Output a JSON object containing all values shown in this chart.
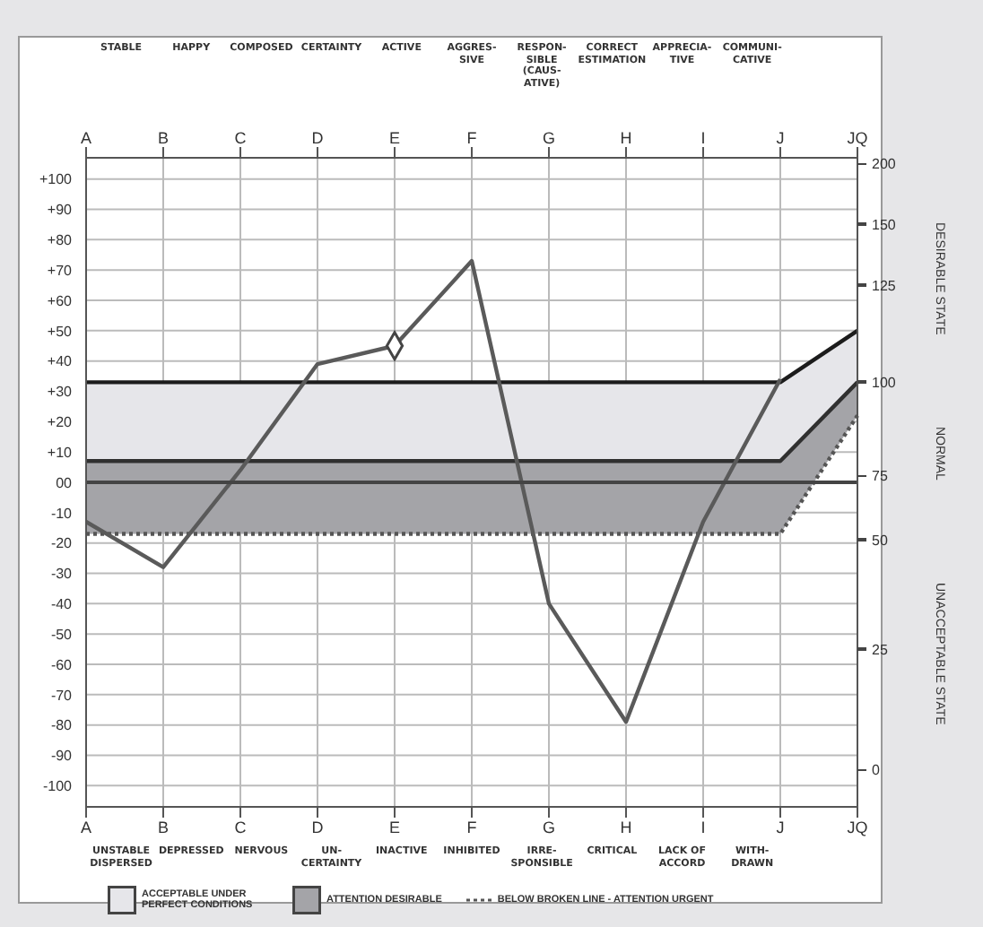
{
  "chart_data": {
    "type": "line",
    "categories": [
      "A",
      "B",
      "C",
      "D",
      "E",
      "F",
      "G",
      "H",
      "I",
      "J",
      "JQ"
    ],
    "ylim": [
      -107,
      107
    ],
    "yticks": [
      {
        "value": 100,
        "label": "+100"
      },
      {
        "value": 90,
        "label": "+90"
      },
      {
        "value": 80,
        "label": "+80"
      },
      {
        "value": 70,
        "label": "+70"
      },
      {
        "value": 60,
        "label": "+60"
      },
      {
        "value": 50,
        "label": "+50"
      },
      {
        "value": 40,
        "label": "+40"
      },
      {
        "value": 30,
        "label": "+30"
      },
      {
        "value": 20,
        "label": "+20"
      },
      {
        "value": 10,
        "label": "+10"
      },
      {
        "value": 0,
        "label": "00"
      },
      -10,
      -20,
      -30,
      -40,
      -50,
      -60,
      -70,
      -80,
      -90,
      -100
    ],
    "grid": true,
    "legend": "bottom",
    "series": [
      {
        "color": "#1c1c1c",
        "values": [
          33,
          33,
          33,
          33,
          33,
          33,
          33,
          33,
          33,
          33,
          50
        ]
      },
      {
        "color": "#303030",
        "values": [
          7,
          7,
          7,
          7,
          7,
          7,
          7,
          7,
          7,
          7,
          33
        ]
      },
      {
        "name": "ACCEPTABLE UNDER PERFECT CONDITIONS",
        "color": "#e6e6ea",
        "values": [
          null,
          null,
          null,
          null,
          null,
          null,
          null,
          null,
          null,
          null,
          null
        ],
        "lower": [
          7,
          7,
          7,
          7,
          7,
          7,
          7,
          7,
          7,
          7,
          33
        ],
        "upper": [
          33,
          33,
          33,
          33,
          33,
          33,
          33,
          33,
          33,
          33,
          50
        ]
      },
      {
        "name": "ATTENTION DESIRABLE",
        "color": "#a4a4a8",
        "values": [
          null,
          null,
          null,
          null,
          null,
          null,
          null,
          null,
          null,
          null,
          null
        ],
        "lower": [
          -17,
          -17,
          -17,
          -17,
          -17,
          -17,
          -17,
          -17,
          -17,
          -17,
          22
        ],
        "upper": [
          7,
          7,
          7,
          7,
          7,
          7,
          7,
          7,
          7,
          7,
          33
        ]
      },
      {
        "name": "BELOW BROKEN LINE - ATTENTION URGENT",
        "color": "#555555",
        "line_style": "dotted",
        "values": [
          -17,
          -17,
          -17,
          -17,
          -17,
          -17,
          -17,
          -17,
          -17,
          -17,
          22
        ]
      },
      {
        "color": "#5a5a5a",
        "values": [
          -13,
          -28,
          4,
          39,
          45,
          73,
          -40,
          -79,
          -13,
          34,
          null
        ]
      },
      {
        "type": "scatter",
        "color": "#444444",
        "marker": "diamond",
        "x": [
          "E"
        ],
        "values": [
          45
        ]
      }
    ],
    "ref_lines": [
      {
        "axis": "y",
        "value": 0,
        "color": "#444444"
      }
    ],
    "annotations": [
      "STABLE",
      "HAPPY",
      "COMPOSED",
      "CERTAINTY",
      "ACTIVE",
      "AGGRES- SIVE",
      "RESPON- SIBLE (CAUS- ATIVE)",
      "CORRECT ESTIMATION",
      "APPRECIA- TIVE",
      "COMMUNI- CATIVE",
      "UNSTABLE DISPERSED",
      "DEPRESSED",
      "NERVOUS",
      "UN- CERTAINTY",
      "INACTIVE",
      "INHIBITED",
      "IRRE- SPONSIBLE",
      "CRITICAL",
      "LACK OF ACCORD",
      "WITH- DRAWN",
      "200",
      "150",
      "125",
      "100",
      "75",
      "50",
      "25",
      "0",
      "DESIRABLE STATE",
      "NORMAL",
      "UNACCEPTABLE STATE"
    ]
  }
}
